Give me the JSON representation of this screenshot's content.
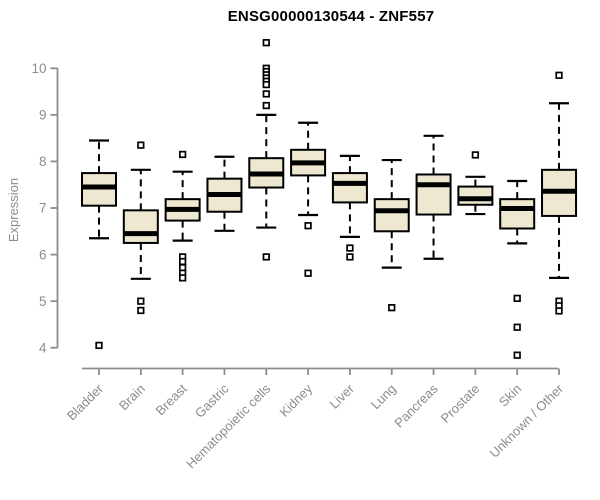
{
  "figure": {
    "title": "ENSG00000130544 - ZNF557",
    "ylabel": "Expression"
  },
  "chart_data": {
    "type": "boxplot",
    "title": "ENSG00000130544 - ZNF557",
    "xlabel": "",
    "ylabel": "Expression",
    "ylim": [
      4,
      10
    ],
    "yticks": [
      4,
      5,
      6,
      7,
      8,
      9,
      10
    ],
    "grid": false,
    "legend": "none",
    "x_tick_rotation": 45,
    "categories": [
      "Bladder",
      "Brain",
      "Breast",
      "Gastric",
      "Hematopoietic cells",
      "Kidney",
      "Liver",
      "Lung",
      "Pancreas",
      "Prostate",
      "Skin",
      "Unknown / Other"
    ],
    "series": [
      {
        "name": "Bladder",
        "whisker_low": 6.35,
        "q1": 7.05,
        "median": 7.45,
        "q3": 7.75,
        "whisker_high": 8.45,
        "outliers": [
          4.05
        ]
      },
      {
        "name": "Brain",
        "whisker_low": 5.48,
        "q1": 6.25,
        "median": 6.45,
        "q3": 6.95,
        "whisker_high": 7.82,
        "outliers": [
          8.35,
          5.0,
          4.8
        ]
      },
      {
        "name": "Breast",
        "whisker_low": 6.3,
        "q1": 6.73,
        "median": 6.97,
        "q3": 7.19,
        "whisker_high": 7.78,
        "outliers": [
          8.15,
          5.95,
          5.85,
          5.72,
          5.6,
          5.5
        ]
      },
      {
        "name": "Gastric",
        "whisker_low": 6.51,
        "q1": 6.92,
        "median": 7.29,
        "q3": 7.63,
        "whisker_high": 8.1,
        "outliers": []
      },
      {
        "name": "Hematopoietic cells",
        "whisker_low": 6.58,
        "q1": 7.44,
        "median": 7.73,
        "q3": 8.07,
        "whisker_high": 9.0,
        "outliers": [
          10.55,
          10.0,
          9.93,
          9.86,
          9.79,
          9.72,
          9.65,
          9.45,
          9.2,
          5.95
        ]
      },
      {
        "name": "Kidney",
        "whisker_low": 6.85,
        "q1": 7.7,
        "median": 7.97,
        "q3": 8.25,
        "whisker_high": 8.83,
        "outliers": [
          6.62,
          5.6
        ]
      },
      {
        "name": "Liver",
        "whisker_low": 6.38,
        "q1": 7.12,
        "median": 7.53,
        "q3": 7.75,
        "whisker_high": 8.12,
        "outliers": [
          6.14,
          5.95
        ]
      },
      {
        "name": "Lung",
        "whisker_low": 5.72,
        "q1": 6.5,
        "median": 6.94,
        "q3": 7.19,
        "whisker_high": 8.03,
        "outliers": [
          4.86
        ]
      },
      {
        "name": "Pancreas",
        "whisker_low": 5.91,
        "q1": 6.86,
        "median": 7.5,
        "q3": 7.72,
        "whisker_high": 8.55,
        "outliers": []
      },
      {
        "name": "Prostate",
        "whisker_low": 6.87,
        "q1": 7.07,
        "median": 7.2,
        "q3": 7.46,
        "whisker_high": 7.67,
        "outliers": [
          8.14
        ]
      },
      {
        "name": "Skin",
        "whisker_low": 6.24,
        "q1": 6.56,
        "median": 6.99,
        "q3": 7.19,
        "whisker_high": 7.58,
        "outliers": [
          5.06,
          4.44,
          3.84
        ]
      },
      {
        "name": "Unknown / Other",
        "whisker_low": 5.5,
        "q1": 6.83,
        "median": 7.36,
        "q3": 7.82,
        "whisker_high": 9.25,
        "outliers": [
          9.85,
          5.0,
          4.9,
          4.79
        ]
      }
    ],
    "style": {
      "box_fill": "#EDE8CF",
      "box_stroke": "#000000",
      "median_color": "#000000",
      "whisker_color": "#000000",
      "outlier_shape": "open-square",
      "axis_color": "#8C8C8C",
      "title_color": "#000000",
      "background": "#FFFFFF"
    }
  }
}
